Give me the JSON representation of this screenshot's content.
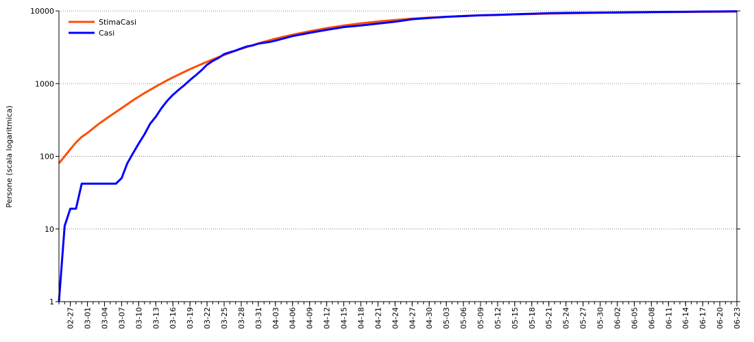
{
  "chart_data": {
    "type": "line",
    "ylabel": "Persone (scala logaritmica)",
    "xlabel": "",
    "y_scale": "log",
    "ylim": [
      1,
      10000
    ],
    "y_ticks": [
      1,
      10,
      100,
      1000,
      10000
    ],
    "y_tick_labels": [
      "1",
      "10",
      "100",
      "1000",
      "10000"
    ],
    "grid": "horizontal dotted",
    "legend_position": "top-left",
    "x_start": "02-25",
    "x_end": "06-23",
    "x_tick_labels": [
      "02-27",
      "03-01",
      "03-04",
      "03-07",
      "03-10",
      "03-13",
      "03-16",
      "03-19",
      "03-22",
      "03-25",
      "03-28",
      "03-31",
      "04-03",
      "04-06",
      "04-09",
      "04-12",
      "04-15",
      "04-18",
      "04-21",
      "04-24",
      "04-27",
      "04-30",
      "05-03",
      "05-06",
      "05-09",
      "05-12",
      "05-15",
      "05-18",
      "05-21",
      "05-24",
      "05-27",
      "05-30",
      "06-02",
      "06-05",
      "06-08",
      "06-11",
      "06-14",
      "06-17",
      "06-20",
      "06-23"
    ],
    "series": [
      {
        "name": "StimaCasi",
        "color": "#ff4d00",
        "x": [
          "02-25",
          "02-26",
          "02-27",
          "02-28",
          "02-29",
          "03-01",
          "03-03",
          "03-05",
          "03-07",
          "03-09",
          "03-11",
          "03-13",
          "03-15",
          "03-17",
          "03-19",
          "03-21",
          "03-23",
          "03-25",
          "03-27",
          "03-29",
          "03-31",
          "04-03",
          "04-06",
          "04-09",
          "04-12",
          "04-15",
          "04-18",
          "04-21",
          "04-24",
          "04-27",
          "04-30",
          "05-03",
          "05-06",
          "05-09",
          "05-12",
          "05-15",
          "05-18",
          "05-21",
          "05-24",
          "05-27",
          "05-30",
          "06-02",
          "06-08",
          "06-14",
          "06-20",
          "06-23"
        ],
        "values": [
          80,
          100,
          125,
          155,
          185,
          210,
          280,
          360,
          460,
          590,
          740,
          910,
          1110,
          1330,
          1580,
          1850,
          2150,
          2480,
          2830,
          3200,
          3570,
          4150,
          4700,
          5250,
          5800,
          6300,
          6750,
          7150,
          7500,
          7820,
          8090,
          8320,
          8520,
          8700,
          8850,
          8970,
          9080,
          9180,
          9270,
          9350,
          9420,
          9480,
          9590,
          9680,
          9760,
          9800
        ]
      },
      {
        "name": "Casi",
        "color": "#0000ff",
        "x": [
          "02-25",
          "02-26",
          "02-27",
          "02-28",
          "02-29",
          "03-01",
          "03-02",
          "03-03",
          "03-04",
          "03-05",
          "03-06",
          "03-07",
          "03-08",
          "03-09",
          "03-10",
          "03-11",
          "03-12",
          "03-13",
          "03-14",
          "03-15",
          "03-16",
          "03-17",
          "03-18",
          "03-19",
          "03-20",
          "03-21",
          "03-22",
          "03-23",
          "03-24",
          "03-25",
          "03-26",
          "03-27",
          "03-28",
          "03-29",
          "03-30",
          "03-31",
          "04-01",
          "04-02",
          "04-03",
          "04-06",
          "04-09",
          "04-12",
          "04-15",
          "04-18",
          "04-21",
          "04-24",
          "04-27",
          "04-30",
          "05-03",
          "05-06",
          "05-09",
          "05-12",
          "05-15",
          "05-18",
          "05-21",
          "05-24",
          "05-27",
          "05-30",
          "06-02",
          "06-05",
          "06-08",
          "06-11",
          "06-14",
          "06-17",
          "06-20",
          "06-23"
        ],
        "values": [
          1,
          11,
          19,
          19,
          42,
          42,
          42,
          42,
          42,
          42,
          42,
          50,
          80,
          110,
          150,
          200,
          280,
          350,
          460,
          580,
          700,
          820,
          950,
          1120,
          1300,
          1520,
          1820,
          2050,
          2250,
          2550,
          2700,
          2850,
          3050,
          3250,
          3350,
          3550,
          3650,
          3750,
          3900,
          4500,
          5000,
          5500,
          6000,
          6300,
          6700,
          7100,
          7700,
          8000,
          8300,
          8500,
          8700,
          8800,
          9000,
          9150,
          9300,
          9400,
          9450,
          9500,
          9550,
          9600,
          9650,
          9700,
          9720,
          9800,
          9850,
          9900
        ]
      }
    ]
  }
}
